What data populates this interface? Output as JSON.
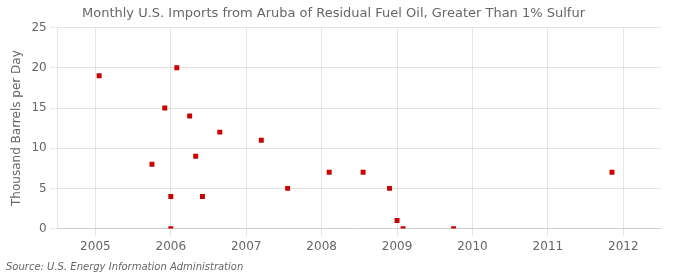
{
  "chart_data": {
    "type": "scatter",
    "title": "Monthly U.S. Imports from Aruba of Residual Fuel Oil, Greater Than 1% Sulfur",
    "ylabel": "Thousand Barrels per Day",
    "annotations": [
      "Source: U.S. Energy Information Administration"
    ],
    "x": [
      2005.05,
      2005.75,
      2005.92,
      2006.0,
      2006.0,
      2006.08,
      2006.25,
      2006.33,
      2006.42,
      2006.65,
      2007.2,
      2007.55,
      2008.1,
      2008.55,
      2008.9,
      2009.0,
      2009.08,
      2009.75,
      2011.85
    ],
    "values": [
      19,
      8,
      15,
      4,
      0,
      20,
      14,
      9,
      4,
      12,
      11,
      5,
      7,
      7,
      5,
      1,
      0,
      0,
      7
    ],
    "color": "#cc0000",
    "marker": "square",
    "xlim": [
      2004.5,
      2012.5
    ],
    "xticks": [
      2005,
      2006,
      2007,
      2008,
      2009,
      2010,
      2011,
      2012
    ],
    "ylim": [
      0,
      25
    ],
    "yticks": [
      0,
      5,
      10,
      15,
      20,
      25
    ],
    "grid": true
  }
}
